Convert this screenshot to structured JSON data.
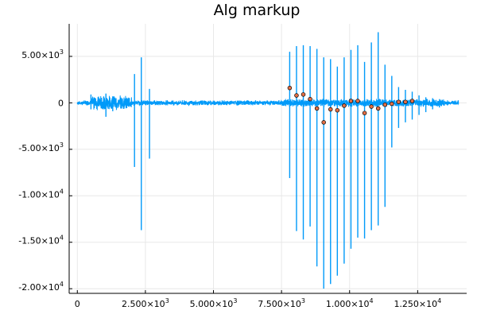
{
  "chart_data": {
    "type": "line",
    "title": "Alg markup",
    "xlabel": "",
    "ylabel": "",
    "xlim": [
      -300,
      14300
    ],
    "ylim": [
      -20500,
      8500
    ],
    "grid": true,
    "legend": "none",
    "x_ticks": [
      {
        "value": 0,
        "label": "0"
      },
      {
        "value": 2500,
        "label": "2.500×10",
        "exp": "3"
      },
      {
        "value": 5000,
        "label": "5.000×10",
        "exp": "3"
      },
      {
        "value": 7500,
        "label": "7.500×10",
        "exp": "3"
      },
      {
        "value": 10000,
        "label": "1.000×10",
        "exp": "4"
      },
      {
        "value": 12500,
        "label": "1.250×10",
        "exp": "4"
      }
    ],
    "y_ticks": [
      {
        "value": 5000,
        "label": "5.00×10",
        "exp": "3"
      },
      {
        "value": 0,
        "label": "0",
        "exp": ""
      },
      {
        "value": -5000,
        "label": "-5.00×10",
        "exp": "3"
      },
      {
        "value": -10000,
        "label": "-1.00×10",
        "exp": "4"
      },
      {
        "value": -15000,
        "label": "-1.50×10",
        "exp": "4"
      },
      {
        "value": -20000,
        "label": "-2.00×10",
        "exp": "4"
      }
    ],
    "series": [
      {
        "color": "#009af9",
        "x_range": [
          0,
          14000
        ],
        "spikes": [
          {
            "x": 500,
            "max": 900,
            "min": -700
          },
          {
            "x": 1050,
            "max": 1000,
            "min": -1500
          },
          {
            "x": 1300,
            "max": 700,
            "min": -900
          },
          {
            "x": 2100,
            "max": 3100,
            "min": -6900
          },
          {
            "x": 2350,
            "max": 4900,
            "min": -13700
          },
          {
            "x": 2650,
            "max": 1500,
            "min": -6000
          },
          {
            "x": 7800,
            "max": 5500,
            "min": -8100
          },
          {
            "x": 8050,
            "max": 6100,
            "min": -13800
          },
          {
            "x": 8300,
            "max": 6200,
            "min": -14700
          },
          {
            "x": 8550,
            "max": 6100,
            "min": -13300
          },
          {
            "x": 8800,
            "max": 5800,
            "min": -17600
          },
          {
            "x": 9050,
            "max": 4900,
            "min": -20000
          },
          {
            "x": 9300,
            "max": 4700,
            "min": -19500
          },
          {
            "x": 9550,
            "max": 3900,
            "min": -18600
          },
          {
            "x": 9800,
            "max": 4900,
            "min": -17300
          },
          {
            "x": 10050,
            "max": 5700,
            "min": -15700
          },
          {
            "x": 10300,
            "max": 6200,
            "min": -14500
          },
          {
            "x": 10550,
            "max": 4400,
            "min": -14600
          },
          {
            "x": 10800,
            "max": 6500,
            "min": -13700
          },
          {
            "x": 11050,
            "max": 7600,
            "min": -13200
          },
          {
            "x": 11300,
            "max": 4100,
            "min": -11200
          },
          {
            "x": 11550,
            "max": 2900,
            "min": -4800
          },
          {
            "x": 11800,
            "max": 1700,
            "min": -2700
          },
          {
            "x": 12050,
            "max": 1400,
            "min": -2100
          },
          {
            "x": 12300,
            "max": 1200,
            "min": -1800
          },
          {
            "x": 12550,
            "max": 800,
            "min": -1300
          },
          {
            "x": 12800,
            "max": 600,
            "min": -1000
          },
          {
            "x": 13050,
            "max": 500,
            "min": -700
          },
          {
            "x": 13300,
            "max": 400,
            "min": -500
          }
        ]
      },
      {
        "type": "scatter",
        "color": "#e26f46",
        "points": [
          {
            "x": 7800,
            "y": 1600
          },
          {
            "x": 8050,
            "y": 800
          },
          {
            "x": 8300,
            "y": 900
          },
          {
            "x": 8550,
            "y": 400
          },
          {
            "x": 8800,
            "y": -600
          },
          {
            "x": 9050,
            "y": -2100
          },
          {
            "x": 9300,
            "y": -700
          },
          {
            "x": 9550,
            "y": -800
          },
          {
            "x": 9800,
            "y": -300
          },
          {
            "x": 10050,
            "y": 200
          },
          {
            "x": 10300,
            "y": 200
          },
          {
            "x": 10550,
            "y": -1100
          },
          {
            "x": 10800,
            "y": -400
          },
          {
            "x": 11050,
            "y": -600
          },
          {
            "x": 11300,
            "y": -200
          },
          {
            "x": 11550,
            "y": -100
          },
          {
            "x": 11800,
            "y": 100
          },
          {
            "x": 12050,
            "y": 100
          },
          {
            "x": 12300,
            "y": 200
          }
        ]
      }
    ]
  }
}
